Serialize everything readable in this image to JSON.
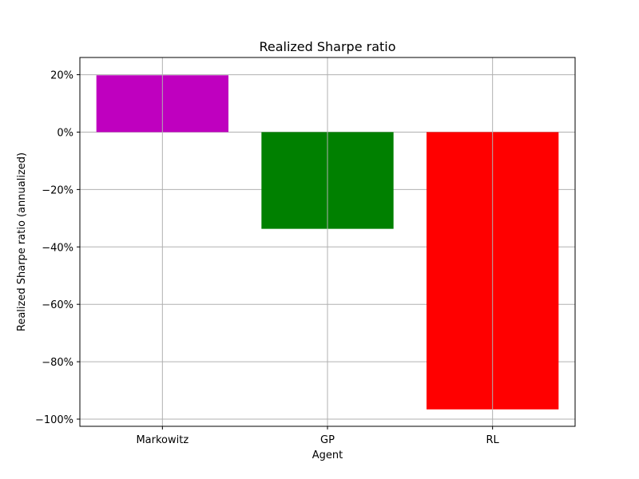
{
  "chart_data": {
    "type": "bar",
    "title": "Realized Sharpe ratio",
    "xlabel": "Agent",
    "ylabel": "Realized Sharpe ratio (annualized)",
    "categories": [
      "Markowitz",
      "GP",
      "RL"
    ],
    "values": [
      0.198,
      -0.337,
      -0.966
    ],
    "colors": [
      "#bf00bf",
      "#008000",
      "#ff0000"
    ],
    "ylim": [
      -1.025,
      0.26
    ],
    "yticks": [
      0.2,
      0.0,
      -0.2,
      -0.4,
      -0.6,
      -0.8,
      -1.0
    ],
    "ytick_labels": [
      "20%",
      "0%",
      "−20%",
      "−40%",
      "−60%",
      "−80%",
      "−100%"
    ],
    "grid": true,
    "legend": "none"
  }
}
